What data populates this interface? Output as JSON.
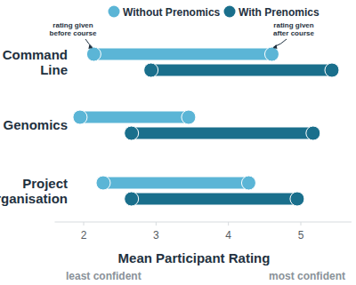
{
  "chart_data": {
    "type": "dumbbell",
    "orientation": "horizontal",
    "categories": [
      "Command Line",
      "Genomics",
      "Project Organisation"
    ],
    "series": [
      {
        "name": "Without Prenomics",
        "color": "#5bb5d6",
        "values": [
          [
            2.14,
            4.6
          ],
          [
            1.95,
            3.45
          ],
          [
            2.27,
            4.28
          ]
        ]
      },
      {
        "name": "With Prenomics",
        "color": "#1a6f8c",
        "values": [
          [
            2.93,
            5.43
          ],
          [
            2.66,
            5.17
          ],
          [
            2.66,
            4.95
          ]
        ]
      }
    ],
    "xlabel": "Mean Participant Rating",
    "xlim": [
      1.6,
      5.7
    ],
    "xticks": [
      2,
      3,
      4,
      5
    ],
    "annotations": [
      "rating given before course",
      "rating given after course",
      "least confident",
      "most confident"
    ],
    "legend": "top",
    "grid": false
  }
}
